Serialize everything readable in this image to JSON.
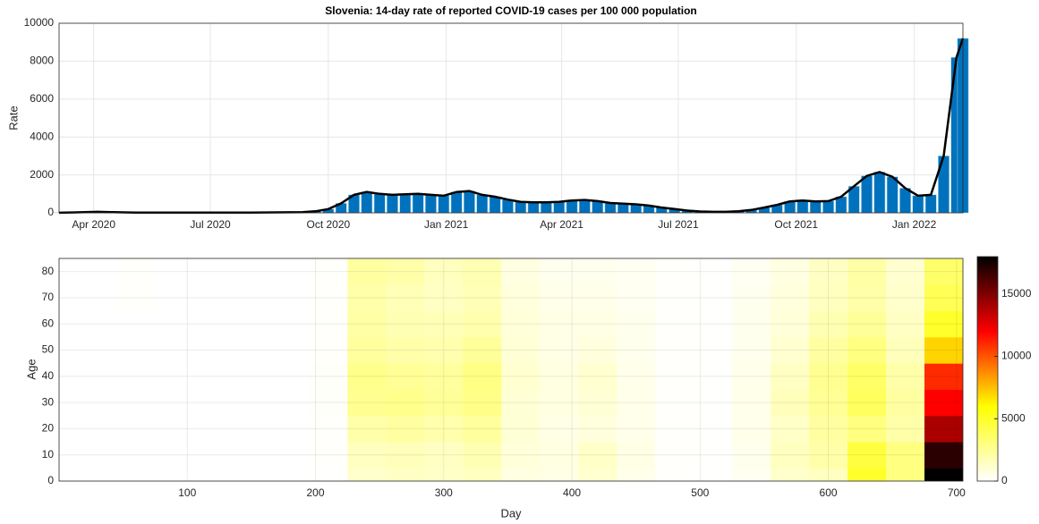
{
  "chart_data": [
    {
      "type": "bar",
      "title": "Slovenia: 14-day rate of reported COVID-19 cases per 100 000 population",
      "ylabel": "Rate",
      "color": "#0072bd",
      "line_color": "#000000",
      "x": [
        0,
        10,
        20,
        30,
        40,
        50,
        60,
        70,
        80,
        90,
        100,
        110,
        120,
        130,
        140,
        150,
        160,
        170,
        180,
        190,
        200,
        210,
        220,
        230,
        240,
        250,
        260,
        270,
        280,
        290,
        300,
        310,
        320,
        330,
        340,
        350,
        360,
        370,
        380,
        390,
        400,
        410,
        420,
        430,
        440,
        450,
        460,
        470,
        480,
        490,
        500,
        510,
        520,
        530,
        540,
        550,
        560,
        570,
        580,
        590,
        600,
        610,
        620,
        630,
        640,
        650,
        660,
        670,
        680,
        690,
        700,
        705
      ],
      "values": [
        5,
        20,
        40,
        50,
        40,
        25,
        15,
        10,
        10,
        10,
        10,
        10,
        10,
        10,
        10,
        15,
        20,
        25,
        30,
        40,
        80,
        200,
        500,
        950,
        1100,
        1000,
        950,
        980,
        1000,
        950,
        900,
        1100,
        1150,
        950,
        850,
        700,
        580,
        550,
        550,
        580,
        650,
        680,
        620,
        520,
        480,
        450,
        380,
        280,
        200,
        120,
        70,
        50,
        50,
        80,
        150,
        280,
        420,
        600,
        650,
        600,
        620,
        850,
        1400,
        1950,
        2150,
        1900,
        1300,
        900,
        950,
        3000,
        8200,
        9200
      ],
      "xlim": [
        0,
        705
      ],
      "xticks": [
        {
          "value": 27,
          "label": "Apr 2020"
        },
        {
          "value": 118,
          "label": "Jul 2020"
        },
        {
          "value": 210,
          "label": "Oct 2020"
        },
        {
          "value": 302,
          "label": "Jan 2021"
        },
        {
          "value": 392,
          "label": "Apr 2021"
        },
        {
          "value": 483,
          "label": "Jul 2021"
        },
        {
          "value": 575,
          "label": "Oct 2021"
        },
        {
          "value": 667,
          "label": "Jan 2022"
        }
      ],
      "ylim": [
        0,
        10000
      ],
      "yticks": [
        0,
        2000,
        4000,
        6000,
        8000,
        10000
      ],
      "grid": true
    },
    {
      "type": "heatmap",
      "xlabel": "Day",
      "ylabel": "Age",
      "x": [
        0,
        30,
        60,
        90,
        120,
        150,
        180,
        210,
        240,
        270,
        300,
        330,
        360,
        390,
        420,
        450,
        480,
        510,
        540,
        570,
        600,
        630,
        660,
        690
      ],
      "y": [
        0,
        10,
        20,
        30,
        40,
        50,
        60,
        70,
        80
      ],
      "z": [
        [
          0,
          0,
          0,
          0,
          0,
          0,
          0,
          50,
          1200,
          1400,
          1300,
          1500,
          700,
          600,
          1100,
          500,
          100,
          50,
          300,
          1200,
          1500,
          5000,
          3000,
          18000
        ],
        [
          0,
          0,
          0,
          0,
          0,
          0,
          0,
          80,
          1500,
          1600,
          1400,
          1800,
          900,
          700,
          1300,
          600,
          100,
          50,
          400,
          1500,
          2000,
          4500,
          3000,
          17000
        ],
        [
          0,
          0,
          0,
          0,
          0,
          0,
          0,
          100,
          2000,
          2200,
          1900,
          2300,
          1000,
          600,
          800,
          500,
          100,
          50,
          500,
          1300,
          2200,
          3000,
          2000,
          14000
        ],
        [
          0,
          0,
          0,
          0,
          0,
          0,
          0,
          120,
          2600,
          2700,
          2400,
          2800,
          1000,
          700,
          1000,
          500,
          100,
          50,
          500,
          1600,
          2500,
          3800,
          2200,
          12000
        ],
        [
          0,
          0,
          0,
          0,
          0,
          0,
          0,
          120,
          2700,
          2500,
          2300,
          2900,
          1100,
          700,
          1100,
          500,
          100,
          50,
          500,
          1400,
          2600,
          3600,
          2000,
          11000
        ],
        [
          0,
          0,
          0,
          0,
          0,
          0,
          0,
          100,
          2300,
          2000,
          1900,
          2400,
          1000,
          600,
          800,
          400,
          100,
          50,
          400,
          1100,
          2200,
          3000,
          1600,
          7000
        ],
        [
          0,
          0,
          0,
          0,
          0,
          0,
          0,
          100,
          2100,
          1800,
          1700,
          1900,
          900,
          600,
          600,
          400,
          100,
          50,
          400,
          900,
          1800,
          2400,
          1400,
          5000
        ],
        [
          0,
          0,
          100,
          0,
          0,
          0,
          0,
          100,
          2000,
          1700,
          1400,
          1700,
          800,
          500,
          500,
          300,
          100,
          50,
          350,
          800,
          1500,
          2000,
          1200,
          4000
        ],
        [
          0,
          0,
          100,
          0,
          0,
          0,
          0,
          100,
          2200,
          2000,
          1500,
          1800,
          700,
          400,
          400,
          300,
          100,
          50,
          300,
          700,
          1400,
          2100,
          1100,
          3500
        ]
      ],
      "xlim": [
        0,
        705
      ],
      "xticks": [
        100,
        200,
        300,
        400,
        500,
        600,
        700
      ],
      "ylim": [
        0,
        85
      ],
      "yticks": [
        0,
        10,
        20,
        30,
        40,
        50,
        60,
        70,
        80
      ],
      "zlim": [
        0,
        18000
      ],
      "zticks": [
        0,
        5000,
        10000,
        15000
      ],
      "colormap": [
        "#ffffff",
        "#ffff00",
        "#ff0000",
        "#000000"
      ],
      "grid": true
    }
  ]
}
